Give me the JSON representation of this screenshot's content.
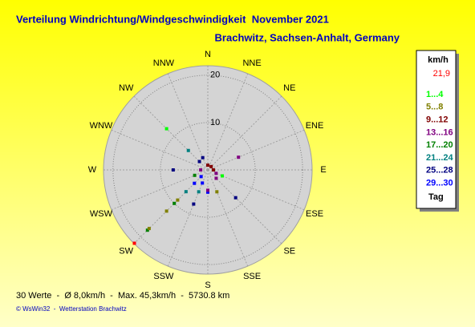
{
  "chart_data": {
    "type": "polar-scatter",
    "title": "Verteilung Windrichtung/Windgeschwindigkeit  November 2021",
    "subtitle": "Brachwitz, Sachsen-Anhalt, Germany",
    "directions": [
      "N",
      "NNE",
      "NE",
      "ENE",
      "E",
      "ESE",
      "SE",
      "SSE",
      "S",
      "SSW",
      "SW",
      "WSW",
      "W",
      "WNW",
      "NW",
      "NNW"
    ],
    "x": [
      225,
      225,
      225,
      225,
      225,
      225,
      225,
      315,
      315,
      67.5,
      270,
      135,
      112.5,
      112.5,
      180,
      202.5,
      157.5,
      180,
      202.5,
      225,
      315,
      0,
      45,
      90,
      270,
      225,
      337.5,
      135,
      247.5,
      202.5
    ],
    "values": [
      21.9,
      18.0,
      17.5,
      12.3,
      10.0,
      9.0,
      6.5,
      12.3,
      5.8,
      7.0,
      7.3,
      8.3,
      3.3,
      1.9,
      4.7,
      7.8,
      5.0,
      4.3,
      5.0,
      4.0,
      2.5,
      1.0,
      1.0,
      1.2,
      1.5,
      2.0,
      2.8,
      2.5,
      3.0,
      3.0
    ],
    "colors": [
      "#ff0000",
      "#008000",
      "#808000",
      "#808000",
      "#008000",
      "#808000",
      "#008080",
      "#00ff00",
      "#008080",
      "#800080",
      "#000080",
      "#000080",
      "#00ff00",
      "#800080",
      "#0000ff",
      "#000080",
      "#808000",
      "#800080",
      "#008080",
      "#0000ff",
      "#000080",
      "#800000",
      "#800000",
      "#800000",
      "#800080",
      "#0000ff",
      "#000080",
      "#800080",
      "#008000",
      "#0000ff"
    ],
    "rlim": [
      0,
      22
    ],
    "rticks": [
      10,
      20
    ],
    "legend": {
      "title": "km/h",
      "max": "21,9",
      "items": [
        {
          "label": "1...4",
          "color": "#00ff00"
        },
        {
          "label": "5...8",
          "color": "#808000"
        },
        {
          "label": "9...12",
          "color": "#800000"
        },
        {
          "label": "13...16",
          "color": "#800080"
        },
        {
          "label": "17...20",
          "color": "#008000"
        },
        {
          "label": "21...24",
          "color": "#008080"
        },
        {
          "label": "25...28",
          "color": "#000080"
        },
        {
          "label": "29...30",
          "color": "#0000ff"
        }
      ],
      "footer": "Tag"
    },
    "footer": "30 Werte  -  Ø 8,0km/h  -  Max. 45,3km/h  -  5730.8 km",
    "credit": "© WsWin32  -  Wetterstation Brachwitz"
  }
}
